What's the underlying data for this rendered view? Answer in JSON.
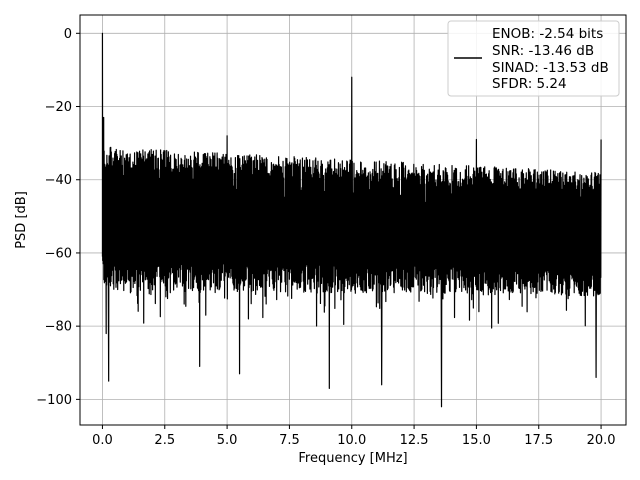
{
  "chart_data": {
    "type": "line",
    "title": "",
    "xlabel": "Frequency [MHz]",
    "ylabel": "PSD [dB]",
    "xlim": [
      -0.9,
      21.0
    ],
    "ylim": [
      -107,
      5
    ],
    "xticks": [
      0.0,
      2.5,
      5.0,
      7.5,
      10.0,
      12.5,
      15.0,
      17.5,
      20.0
    ],
    "xtick_labels": [
      "0.0",
      "2.5",
      "5.0",
      "7.5",
      "10.0",
      "12.5",
      "15.0",
      "17.5",
      "20.0"
    ],
    "yticks": [
      0,
      -20,
      -40,
      -60,
      -80,
      -100
    ],
    "ytick_labels": [
      "0",
      "−20",
      "−40",
      "−60",
      "−80",
      "−100"
    ],
    "grid": true,
    "legend_position": "top-right",
    "series": [
      {
        "name": "",
        "color": "#000000",
        "x_range": [
          0.0,
          20.0
        ],
        "noise_floor_upper_db": [
          -31,
          -38
        ],
        "noise_floor_lower_db": [
          -70,
          -72
        ],
        "peaks": [
          {
            "x": 0.0,
            "y": 0
          },
          {
            "x": 0.05,
            "y": -23
          },
          {
            "x": 5.0,
            "y": -28
          },
          {
            "x": 10.0,
            "y": -12
          },
          {
            "x": 15.0,
            "y": -29
          },
          {
            "x": 20.0,
            "y": -29
          }
        ],
        "dips": [
          {
            "x": 0.15,
            "y": -82
          },
          {
            "x": 0.25,
            "y": -95
          },
          {
            "x": 3.9,
            "y": -91
          },
          {
            "x": 5.5,
            "y": -93
          },
          {
            "x": 9.1,
            "y": -97
          },
          {
            "x": 11.2,
            "y": -96
          },
          {
            "x": 13.6,
            "y": -102
          },
          {
            "x": 19.8,
            "y": -94
          }
        ]
      }
    ],
    "legend": {
      "lines": [
        "ENOB: -2.54 bits",
        "SNR: -13.46 dB",
        "SINAD: -13.53 dB",
        "SFDR: 5.24"
      ]
    }
  }
}
